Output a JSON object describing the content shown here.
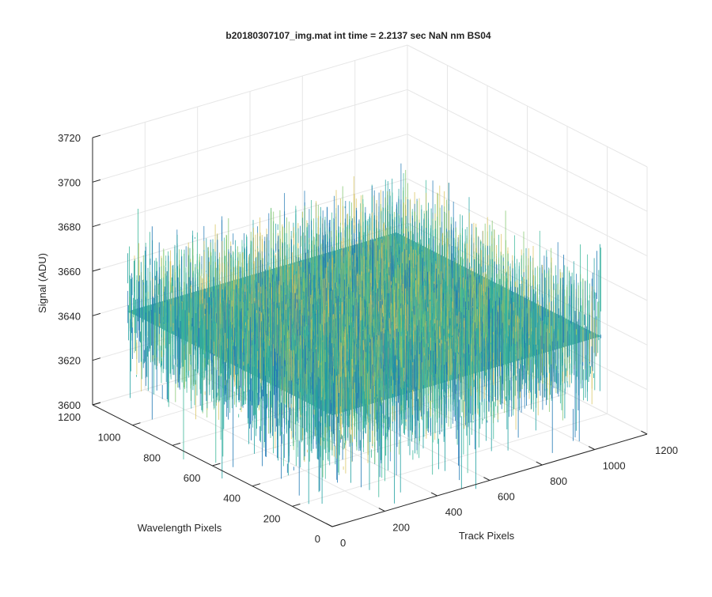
{
  "chart_data": {
    "type": "surface",
    "title": "b20180307107_img.mat int time = 2.2137 sec  NaN nm BS04",
    "xlabel": "Track Pixels",
    "ylabel": "Wavelength Pixels",
    "zlabel": "Signal (ADU)",
    "xlim": [
      0,
      1200
    ],
    "ylim": [
      0,
      1200
    ],
    "zlim": [
      3600,
      3720
    ],
    "xticks": [
      "0",
      "200",
      "400",
      "600",
      "800",
      "1000",
      "1200"
    ],
    "yticks": [
      "0",
      "200",
      "400",
      "600",
      "800",
      "1000",
      "1200"
    ],
    "zticks": [
      "3600",
      "3620",
      "3640",
      "3660",
      "3680",
      "3700",
      "3720"
    ],
    "data_extent": {
      "x": [
        0,
        1024
      ],
      "y": [
        0,
        1024
      ]
    },
    "signal_mean": 3650,
    "signal_range": [
      3610,
      3700
    ],
    "grid": true,
    "colormap": [
      "#1f78b4",
      "#1fa0a0",
      "#3cb89a",
      "#7fc56a",
      "#d8c25a"
    ]
  }
}
